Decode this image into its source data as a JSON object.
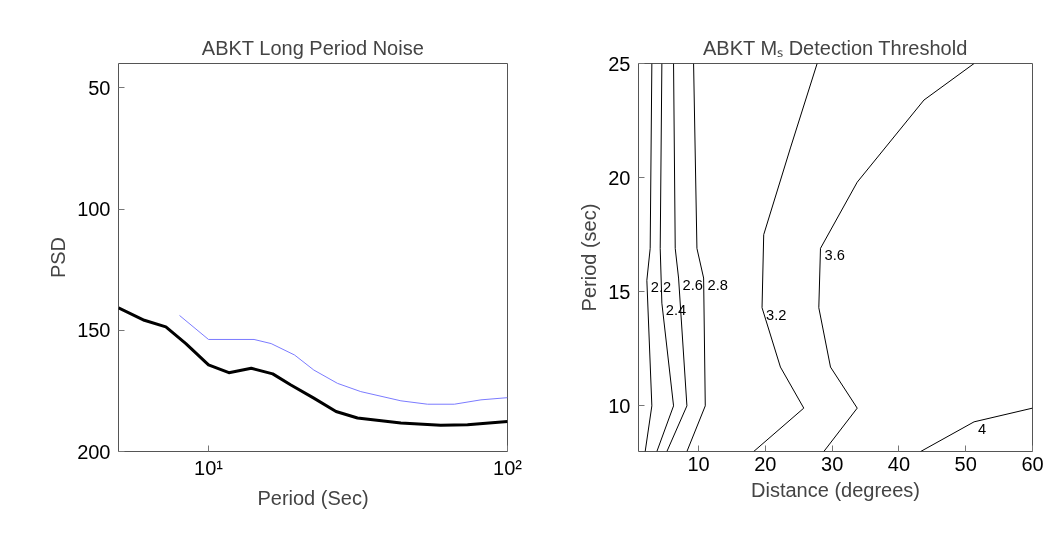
{
  "chart_data": [
    {
      "type": "line",
      "title": "ABKT Long Period Noise",
      "xlabel": "Period (Sec)",
      "ylabel": "PSD",
      "log": "x",
      "grid": false,
      "xlim": [
        5,
        100
      ],
      "xticks": [
        {
          "value": 10,
          "label": "10¹"
        },
        {
          "value": 100,
          "label": "10²"
        }
      ],
      "ylim": [
        200,
        40
      ],
      "yticks": [
        50,
        100,
        150,
        200
      ],
      "series": [
        {
          "color": "#000000",
          "x": [
            5,
            6.1,
            7.2,
            8.4,
            10,
            11.7,
            13.9,
            16.4,
            18.8,
            22.5,
            26.7,
            31.5,
            44,
            59.8,
            73.5,
            100
          ],
          "values": [
            140.8,
            145.9,
            148.6,
            155.5,
            164.3,
            167.5,
            165.7,
            168,
            172.5,
            178,
            183.5,
            186.2,
            188.2,
            189.2,
            189,
            187.6
          ]
        },
        {
          "color": "#7b7bff",
          "x": [
            8,
            10,
            14.2,
            16.2,
            19.4,
            22.5,
            27,
            32.3,
            44,
            54,
            66.4,
            81.5,
            100
          ],
          "values": [
            143.9,
            153.8,
            153.8,
            155.5,
            160.2,
            166.4,
            171.9,
            175.3,
            179.1,
            180.5,
            180.5,
            178.7,
            177.8
          ]
        }
      ]
    },
    {
      "type": "line",
      "title": "ABKT Mₛ Detection Threshold",
      "xlabel": "Distance (degrees)",
      "ylabel": "Period (sec)",
      "grid": false,
      "xlim": [
        1,
        60
      ],
      "xticks": [
        10,
        20,
        30,
        40,
        50,
        60
      ],
      "ylim": [
        8,
        25
      ],
      "yticks": [
        10,
        15,
        20,
        25
      ],
      "series": [
        {
          "name": "2.2",
          "color": "#000000",
          "x": [
            2.0,
            3.0,
            2.25,
            2.75,
            3.0
          ],
          "values": [
            8.0,
            10.0,
            15.5,
            16.9,
            25
          ]
        },
        {
          "name": "2.4",
          "color": "#000000",
          "x": [
            3.75,
            6.25,
            4.5,
            4.25,
            4.5
          ],
          "values": [
            8.0,
            10.0,
            14.5,
            16.9,
            25
          ]
        },
        {
          "name": "2.6",
          "color": "#000000",
          "x": [
            5.25,
            8.25,
            7.0,
            6.5,
            6.25
          ],
          "values": [
            8.0,
            10.0,
            15.6,
            16.9,
            25
          ]
        },
        {
          "name": "2.8",
          "color": "#000000",
          "x": [
            8.25,
            11.0,
            10.75,
            9.75,
            9.25
          ],
          "values": [
            8.0,
            10.0,
            15.6,
            16.9,
            25
          ]
        },
        {
          "name": "3.2",
          "color": "#000000",
          "x": [
            18.25,
            25.75,
            22.25,
            19.5,
            19.75,
            23.75,
            27.75
          ],
          "values": [
            8.0,
            9.9,
            11.7,
            14.3,
            17.5,
            21.3,
            25
          ]
        },
        {
          "name": "3.6",
          "color": "#000000",
          "x": [
            28.75,
            33.75,
            29.75,
            28,
            28.25,
            33.75,
            43.75,
            51.25
          ],
          "values": [
            8.0,
            9.9,
            11.7,
            14.3,
            16.9,
            19.8,
            23.4,
            25
          ]
        },
        {
          "name": "4",
          "color": "#000000",
          "x": [
            43.25,
            51.25,
            60
          ],
          "values": [
            8.0,
            9.3,
            9.9
          ]
        }
      ]
    }
  ]
}
